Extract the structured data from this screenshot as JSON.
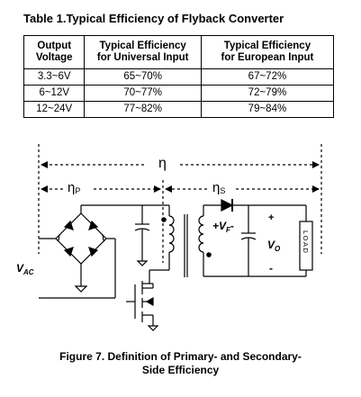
{
  "table": {
    "title": "Table 1.Typical Efficiency of Flyback Converter",
    "headers": [
      [
        "Output",
        "Voltage"
      ],
      [
        "Typical Efficiency",
        "for Universal Input"
      ],
      [
        "Typical Efficiency",
        "for European Input"
      ]
    ],
    "rows": [
      [
        "3.3~6V",
        "65~70%",
        "67~72%"
      ],
      [
        "6~12V",
        "70~77%",
        "72~79%"
      ],
      [
        "12~24V",
        "77~82%",
        "79~84%"
      ]
    ]
  },
  "diagram": {
    "eta": "η",
    "eta_p": "η",
    "eta_p_sub": "P",
    "eta_s": "η",
    "eta_s_sub": "S",
    "vac": "V",
    "vac_sub": "AC",
    "vf_plus": "+",
    "vf": "V",
    "vf_sub": "F",
    "vf_minus": "-",
    "vo": "V",
    "vo_sub": "O",
    "plus": "+",
    "minus": "-",
    "load": "LOAD"
  },
  "caption": {
    "line1": "Figure 7.   Definition of Primary- and Secondary-",
    "line2": "Side Efficiency"
  }
}
